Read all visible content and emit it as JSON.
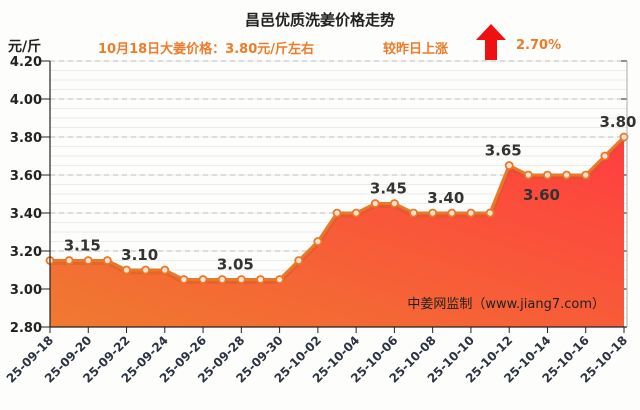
{
  "chart_data": {
    "type": "area",
    "title": "昌邑优质洗姜价格走势",
    "subtitle_price": "10月18日大姜价格：3.80元/斤左右",
    "subtitle_change_label": "较昨日上涨",
    "subtitle_change_value": "2.70%",
    "ylabel": "元/斤",
    "ylim": [
      2.8,
      4.2
    ],
    "yticks": [
      "2.80",
      "3.00",
      "3.20",
      "3.40",
      "3.60",
      "3.80",
      "4.00",
      "4.20"
    ],
    "x": [
      "25-09-18",
      "25-09-19",
      "25-09-20",
      "25-09-21",
      "25-09-22",
      "25-09-23",
      "25-09-24",
      "25-09-25",
      "25-09-26",
      "25-09-27",
      "25-09-28",
      "25-09-29",
      "25-09-30",
      "25-10-01",
      "25-10-02",
      "25-10-03",
      "25-10-04",
      "25-10-05",
      "25-10-06",
      "25-10-07",
      "25-10-08",
      "25-10-09",
      "25-10-10",
      "25-10-11",
      "25-10-12",
      "25-10-13",
      "25-10-14",
      "25-10-15",
      "25-10-16",
      "25-10-17",
      "25-10-18"
    ],
    "xtick_labels": [
      "25-09-18",
      "25-09-20",
      "25-09-22",
      "25-09-24",
      "25-09-26",
      "25-09-28",
      "25-09-30",
      "25-10-02",
      "25-10-04",
      "25-10-06",
      "25-10-08",
      "25-10-10",
      "25-10-12",
      "25-10-14",
      "25-10-16",
      "25-10-18"
    ],
    "values": [
      3.15,
      3.15,
      3.15,
      3.15,
      3.1,
      3.1,
      3.1,
      3.05,
      3.05,
      3.05,
      3.05,
      3.05,
      3.05,
      3.15,
      3.25,
      3.4,
      3.4,
      3.45,
      3.45,
      3.4,
      3.4,
      3.4,
      3.4,
      3.4,
      3.65,
      3.6,
      3.6,
      3.6,
      3.6,
      3.7,
      3.8
    ],
    "data_labels": [
      {
        "index": 2,
        "text": "3.15",
        "side": "above"
      },
      {
        "index": 5,
        "text": "3.10",
        "side": "above"
      },
      {
        "index": 10,
        "text": "3.05",
        "side": "above"
      },
      {
        "index": 18,
        "text": "3.45",
        "side": "above"
      },
      {
        "index": 21,
        "text": "3.40",
        "side": "above"
      },
      {
        "index": 24,
        "text": "3.65",
        "side": "above"
      },
      {
        "index": 26,
        "text": "3.60",
        "side": "below"
      },
      {
        "index": 30,
        "text": "3.80",
        "side": "above"
      }
    ],
    "watermark": "中姜网监制（www.jiang7.com）",
    "grid": true,
    "colors": {
      "line": "#e8782a",
      "fill_start": "#f07a30",
      "fill_end": "#ff3d40",
      "arrow": "#ee1111",
      "subtitle": "#ee7b2a",
      "tick": "#333333"
    }
  }
}
